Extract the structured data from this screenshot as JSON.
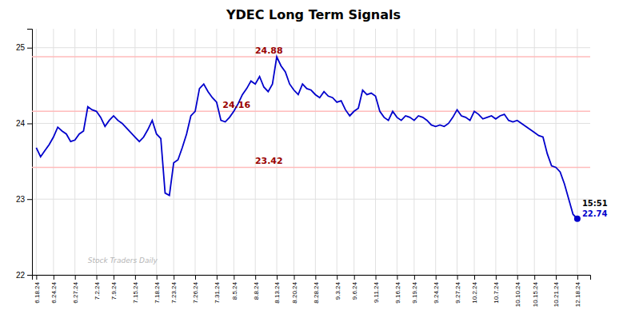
{
  "chart_data": {
    "type": "line",
    "title": "YDEC Long Term Signals",
    "categories": [
      "6.18.24",
      null,
      null,
      null,
      "6.24.24",
      null,
      null,
      null,
      null,
      "6.27.24",
      null,
      null,
      null,
      null,
      "7.2.24",
      null,
      null,
      null,
      "7.9.24",
      null,
      null,
      null,
      null,
      "7.15.24",
      null,
      null,
      null,
      null,
      "7.18.24",
      null,
      null,
      null,
      "7.23.24",
      null,
      null,
      null,
      null,
      "7.26.24",
      null,
      null,
      null,
      null,
      "7.31.24",
      null,
      null,
      null,
      "8.5.24",
      null,
      null,
      null,
      null,
      "8.8.24",
      null,
      null,
      null,
      null,
      "8.13.24",
      null,
      null,
      null,
      "8.20.24",
      null,
      null,
      null,
      null,
      "8.28.24",
      null,
      null,
      null,
      null,
      "9.3.24",
      null,
      null,
      null,
      "9.6.24",
      null,
      null,
      null,
      null,
      "9.11.24",
      null,
      null,
      null,
      null,
      "9.16.24",
      null,
      null,
      null,
      "9.19.24",
      null,
      null,
      null,
      null,
      "9.24.24",
      null,
      null,
      null,
      null,
      "9.27.24",
      null,
      null,
      null,
      "10.2.24",
      null,
      null,
      null,
      null,
      "10.7.24",
      null,
      null,
      null,
      null,
      "10.10.24",
      null,
      null,
      null,
      "10.15.24",
      null,
      null,
      null,
      null,
      "10.21.24",
      null,
      null,
      null,
      null,
      "12.18.24"
    ],
    "series": [
      {
        "color": "#0000cc",
        "values": [
          23.68,
          23.56,
          23.64,
          23.72,
          23.82,
          23.95,
          23.9,
          23.86,
          23.76,
          23.78,
          23.86,
          23.9,
          24.22,
          24.18,
          24.16,
          24.08,
          23.96,
          24.04,
          24.1,
          24.04,
          24.0,
          23.94,
          23.88,
          23.82,
          23.76,
          23.82,
          23.92,
          24.04,
          23.86,
          23.8,
          23.08,
          23.05,
          23.48,
          23.52,
          23.68,
          23.86,
          24.1,
          24.16,
          24.46,
          24.52,
          24.42,
          24.34,
          24.28,
          24.04,
          24.02,
          24.08,
          24.16,
          24.26,
          24.38,
          24.46,
          24.56,
          24.52,
          24.62,
          24.48,
          24.42,
          24.52,
          24.88,
          24.76,
          24.68,
          24.52,
          24.44,
          24.38,
          24.52,
          24.46,
          24.44,
          24.38,
          24.34,
          24.42,
          24.36,
          24.34,
          24.28,
          24.3,
          24.18,
          24.1,
          24.16,
          24.2,
          24.44,
          24.38,
          24.4,
          24.36,
          24.16,
          24.08,
          24.04,
          24.16,
          24.08,
          24.04,
          24.1,
          24.08,
          24.04,
          24.1,
          24.08,
          24.04,
          23.98,
          23.96,
          23.98,
          23.96,
          24.0,
          24.08,
          24.18,
          24.1,
          24.08,
          24.04,
          24.16,
          24.12,
          24.06,
          24.08,
          24.1,
          24.06,
          24.1,
          24.12,
          24.04,
          24.02,
          24.04,
          24.0,
          23.96,
          23.92,
          23.88,
          23.84,
          23.82,
          23.6,
          23.44,
          23.42,
          23.36,
          23.2,
          23.0,
          22.8,
          22.74
        ]
      }
    ],
    "ylim": [
      22,
      25.25
    ],
    "yticks": [
      22,
      23,
      24,
      25
    ],
    "grid": true,
    "reference_lines": [
      {
        "y": 24.88,
        "label": "24.88",
        "color": "#ffbbbb",
        "label_color": "#990000"
      },
      {
        "y": 24.16,
        "label": "24.16",
        "color": "#ffbbbb",
        "label_color": "#990000"
      },
      {
        "y": 23.42,
        "label": "23.42",
        "color": "#ffbbbb",
        "label_color": "#990000"
      }
    ],
    "annotations": [
      {
        "text": "15:51",
        "color": "#000000"
      },
      {
        "text": "22.74",
        "color": "#0000cc"
      }
    ],
    "watermark": {
      "text": "Stock Traders Daily",
      "color": "#aaaaaa"
    }
  }
}
